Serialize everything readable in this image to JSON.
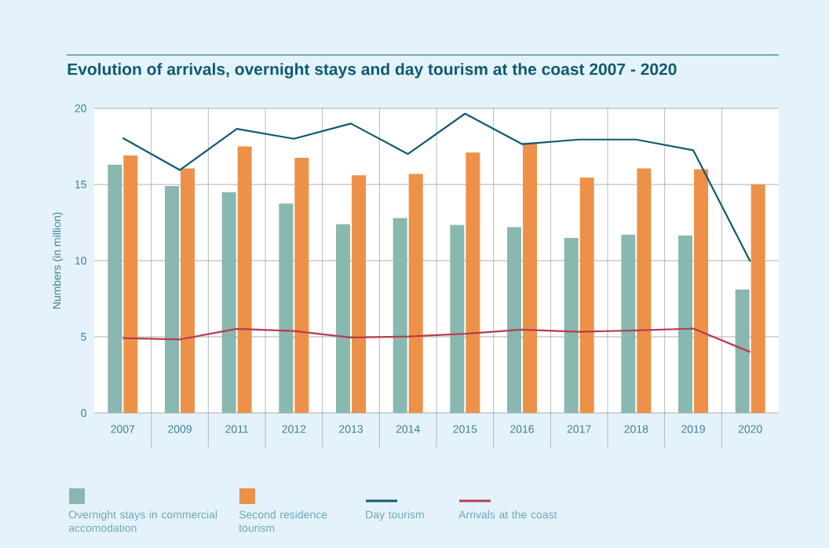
{
  "chart_data": {
    "type": "bar",
    "title": "Evolution of arrivals, overnight stays and day tourism at the coast 2007 - 2020",
    "ylabel": "Numbers (in million)",
    "categories": [
      "2007",
      "2009",
      "2011",
      "2012",
      "2013",
      "2014",
      "2015",
      "2016",
      "2017",
      "2018",
      "2019",
      "2020"
    ],
    "series": [
      {
        "name": "Overnight stays in commercial accomodation",
        "color": "#88b8b0",
        "values": [
          16.3,
          14.9,
          14.5,
          13.75,
          12.4,
          12.8,
          12.35,
          12.2,
          11.5,
          11.7,
          11.65,
          8.1
        ]
      },
      {
        "name": "Second residence tourism",
        "color": "#ed9149",
        "values": [
          16.9,
          16.05,
          17.5,
          16.75,
          15.6,
          15.7,
          17.1,
          17.75,
          15.45,
          16.05,
          16.0,
          15.0
        ]
      },
      {
        "name": "Day tourism",
        "type": "line",
        "color": "#0e5a72",
        "values": [
          18.05,
          15.95,
          18.65,
          18.0,
          19.0,
          17.0,
          19.65,
          17.65,
          17.95,
          17.95,
          17.25,
          9.95
        ]
      },
      {
        "name": "Arrivals at the coast",
        "type": "line",
        "color": "#b53d50",
        "values": [
          4.92,
          4.83,
          5.52,
          5.38,
          4.95,
          5.02,
          5.2,
          5.47,
          5.33,
          5.42,
          5.54,
          4.0
        ]
      }
    ],
    "ylim": [
      0,
      20
    ],
    "yticks": [
      0,
      5,
      10,
      15,
      20
    ],
    "grid": true,
    "legend": "bottom"
  }
}
